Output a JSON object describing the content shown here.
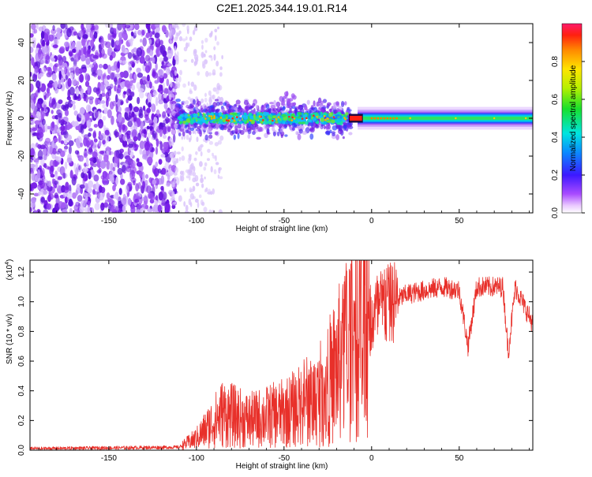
{
  "title": "C2E1.2025.344.19.01.R14",
  "chart_data": [
    {
      "type": "heatmap",
      "name": "spectrogram",
      "xlabel": "Height of straight line (km)",
      "ylabel": "Frequency (Hz)",
      "xlim": [
        -195,
        92
      ],
      "ylim": [
        -50,
        50
      ],
      "xticks": [
        "-150",
        "-100",
        "-50",
        "0",
        "50"
      ],
      "xtick_values": [
        -150,
        -100,
        -50,
        0,
        50
      ],
      "yticks": [
        "-40",
        "-20",
        "0",
        "20",
        "40"
      ],
      "ytick_values": [
        -40,
        -20,
        0,
        20,
        40
      ],
      "noise_region_km": [
        -195,
        -115
      ],
      "signal_onset_km": -115,
      "colorbar": {
        "label": "Normalized spectral amplitude",
        "range": [
          0.0,
          1.0
        ],
        "ticks": [
          "0.0",
          "0.2",
          "0.4",
          "0.6",
          "0.8"
        ],
        "tick_values": [
          0.0,
          0.2,
          0.4,
          0.6,
          0.8
        ],
        "colormap": "rainbow (white-violet-blue-cyan-green-yellow-red)"
      }
    },
    {
      "type": "line",
      "name": "snr",
      "xlabel": "Height of straight line (km)",
      "ylabel": "SNR (10 * v/v)",
      "scale_label": "(x10",
      "scale_exponent": "4",
      "xlim": [
        -195,
        92
      ],
      "ylim": [
        0.0,
        1.28
      ],
      "xticks": [
        "-150",
        "-100",
        "-50",
        "0",
        "50"
      ],
      "xtick_values": [
        -150,
        -100,
        -50,
        0,
        50
      ],
      "yticks": [
        "0.0",
        "0.2",
        "0.4",
        "0.6",
        "0.8",
        "1.0",
        "1.2"
      ],
      "ytick_values": [
        0.0,
        0.2,
        0.4,
        0.6,
        0.8,
        1.0,
        1.2
      ],
      "line_color": "#e8302a",
      "envelope": [
        {
          "x": -195,
          "y": 0.01
        },
        {
          "x": -110,
          "y": 0.02
        },
        {
          "x": -100,
          "y": 0.08
        },
        {
          "x": -85,
          "y": 0.25
        },
        {
          "x": -70,
          "y": 0.2
        },
        {
          "x": -50,
          "y": 0.25
        },
        {
          "x": -30,
          "y": 0.35
        },
        {
          "x": -20,
          "y": 0.55
        },
        {
          "x": -12,
          "y": 0.72
        },
        {
          "x": -5,
          "y": 0.85
        },
        {
          "x": 5,
          "y": 0.95
        },
        {
          "x": 20,
          "y": 1.05
        },
        {
          "x": 40,
          "y": 1.1
        },
        {
          "x": 50,
          "y": 1.08
        },
        {
          "x": 55,
          "y": 0.7
        },
        {
          "x": 60,
          "y": 1.1
        },
        {
          "x": 75,
          "y": 1.1
        },
        {
          "x": 78,
          "y": 0.66
        },
        {
          "x": 82,
          "y": 1.1
        },
        {
          "x": 92,
          "y": 0.85
        }
      ]
    }
  ]
}
